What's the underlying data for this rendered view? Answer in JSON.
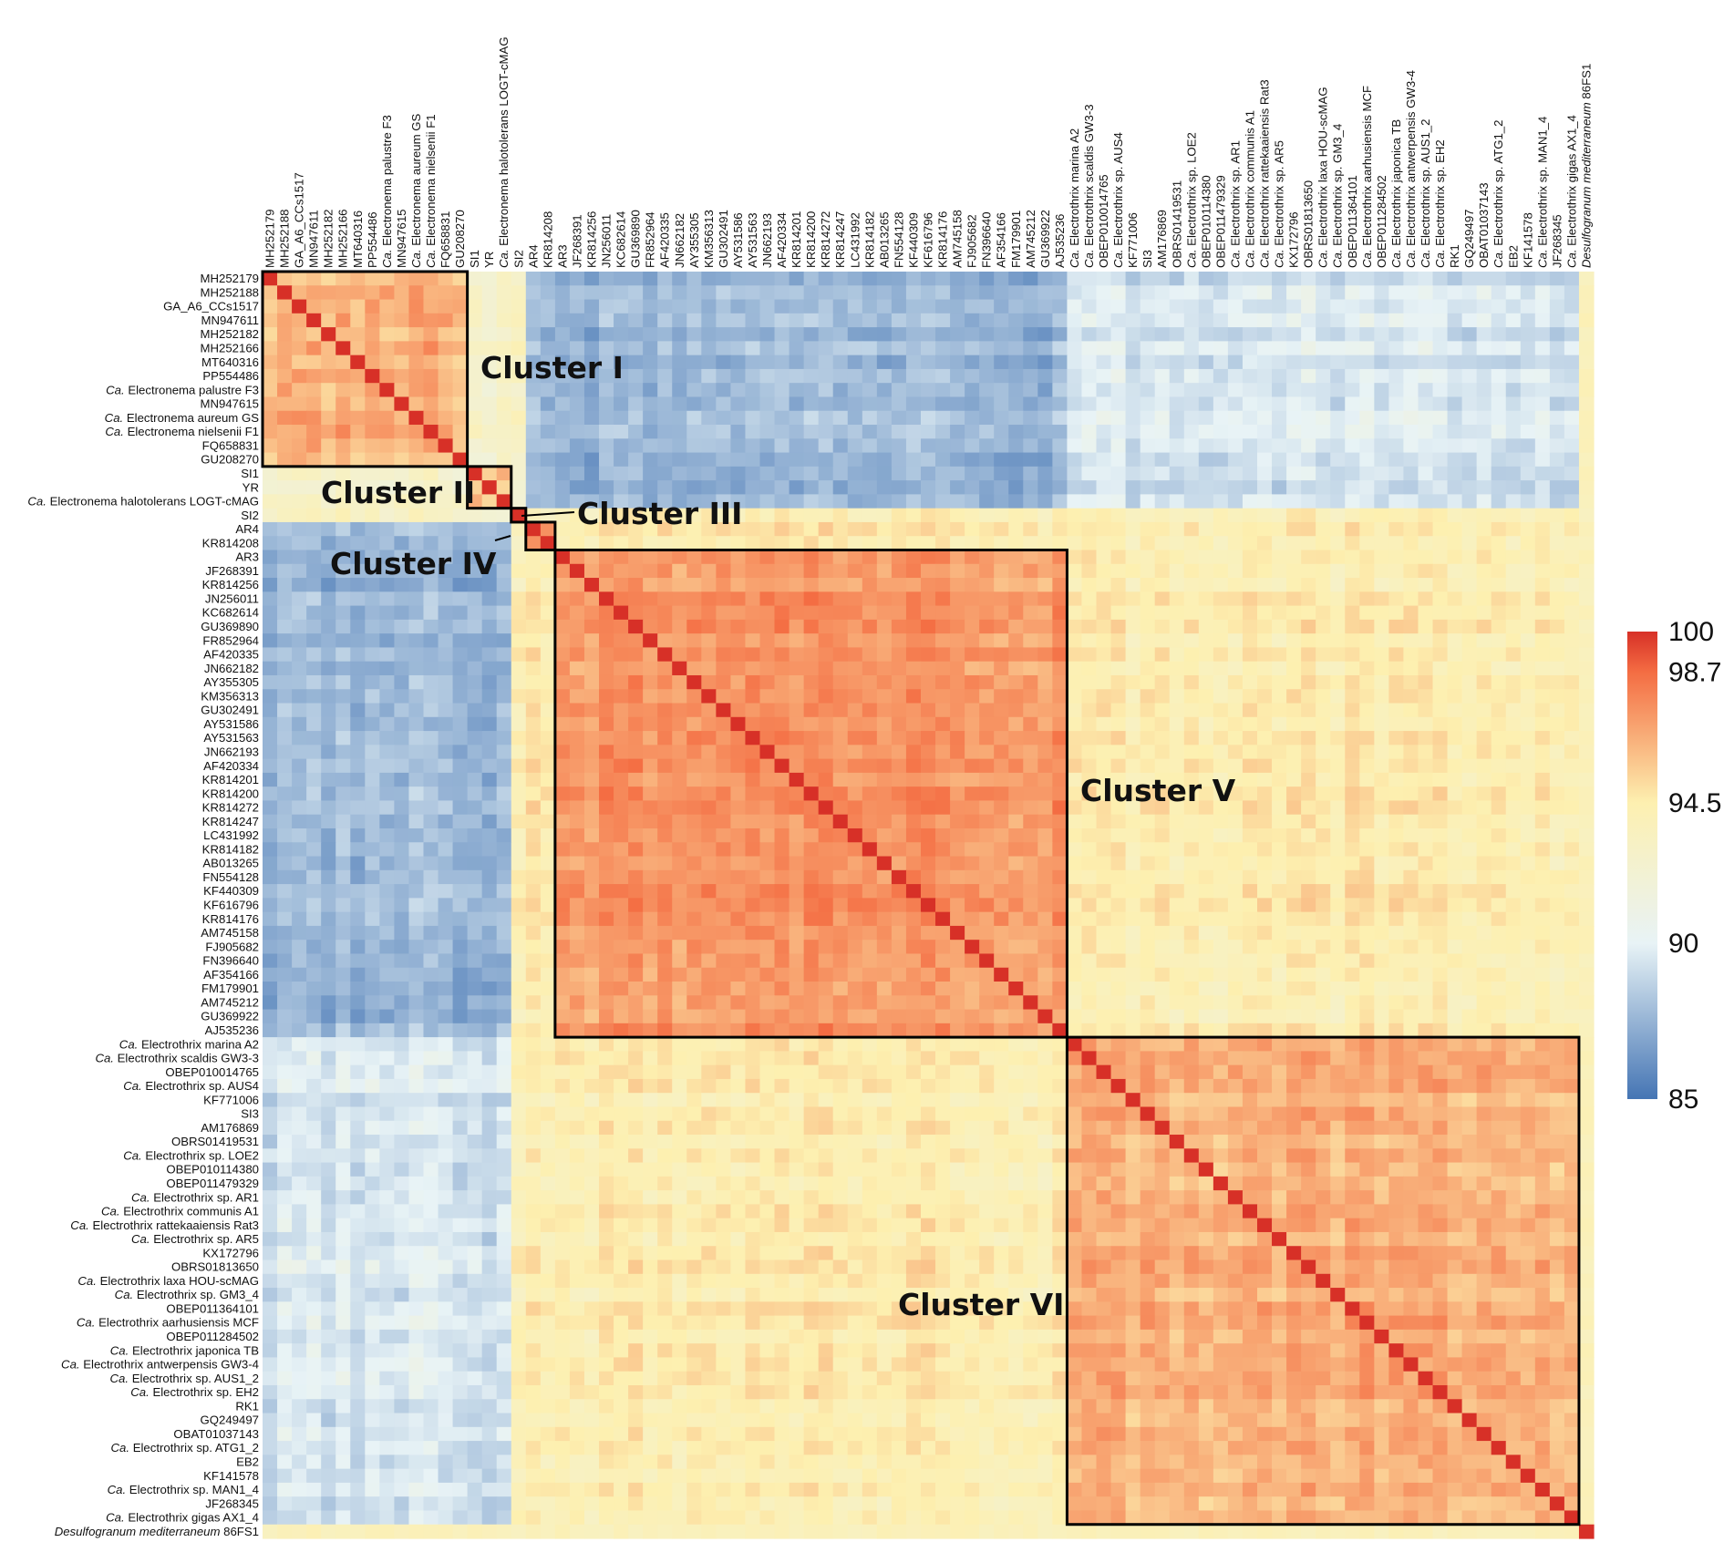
{
  "chart_data": {
    "type": "heatmap",
    "title": "",
    "xlabel": "",
    "ylabel": "",
    "labels": [
      "MH252179",
      "MH252188",
      "GA_A6_CCs1517",
      "MN947611",
      "MH252182",
      "MH252166",
      "MT640316",
      "PP554486",
      "Ca. Electronema palustre F3",
      "MN947615",
      "Ca. Electronema aureum GS",
      "Ca. Electronema nielsenii F1",
      "FQ658831",
      "GU208270",
      "SI1",
      "YR",
      "Ca. Electronema halotolerans LOGT-cMAG",
      "SI2",
      "AR4",
      "KR814208",
      "AR3",
      "JF268391",
      "KR814256",
      "JN256011",
      "KC682614",
      "GU369890",
      "FR852964",
      "AF420335",
      "JN662182",
      "AY355305",
      "KM356313",
      "GU302491",
      "AY531586",
      "AY531563",
      "JN662193",
      "AF420334",
      "KR814201",
      "KR814200",
      "KR814272",
      "KR814247",
      "LC431992",
      "KR814182",
      "AB013265",
      "FN554128",
      "KF440309",
      "KF616796",
      "KR814176",
      "AM745158",
      "FJ905682",
      "FN396640",
      "AF354166",
      "FM179901",
      "AM745212",
      "GU369922",
      "AJ535236",
      "Ca. Electrothrix marina A2",
      "Ca. Electrothrix scaldis GW3-3",
      "OBEP010014765",
      "Ca. Electrothrix sp. AUS4",
      "KF771006",
      "SI3",
      "AM176869",
      "OBRS01419531",
      "Ca. Electrothrix sp. LOE2",
      "OBEP010114380",
      "OBEP011479329",
      "Ca. Electrothrix sp. AR1",
      "Ca. Electrothrix communis A1",
      "Ca. Electrothrix rattekaaiensis Rat3",
      "Ca. Electrothrix sp. AR5",
      "KX172796",
      "OBRS01813650",
      "Ca. Electrothrix laxa HOU-scMAG",
      "Ca. Electrothrix sp. GM3_4",
      "OBEP011364101",
      "Ca. Electrothrix aarhusiensis MCF",
      "OBEP011284502",
      "Ca. Electrothrix japonica TB",
      "Ca. Electrothrix antwerpensis GW3-4",
      "Ca. Electrothrix sp. AUS1_2",
      "Ca. Electrothrix sp. EH2",
      "RK1",
      "GQ249497",
      "OBAT01037143",
      "Ca. Electrothrix sp. ATG1_2",
      "EB2",
      "KF141578",
      "Ca. Electrothrix sp. MAN1_4",
      "JF268345",
      "Ca. Electrothrix gigas AX1_4",
      "Desulfogranum mediterraneum 86FS1"
    ],
    "x_axis_labels": "same as labels",
    "y_axis_labels": "same as labels",
    "value_range": [
      85,
      100
    ],
    "diagonal_value": 100,
    "colorbar": {
      "ticks": [
        "100",
        "98.7",
        "94.5",
        "90",
        "85"
      ],
      "stops": [
        {
          "value": 85,
          "color": "#4575b4"
        },
        {
          "value": 90,
          "color": "#e8f3f6"
        },
        {
          "value": 94.5,
          "color": "#fdf0b0"
        },
        {
          "value": 98.7,
          "color": "#f46d43"
        },
        {
          "value": 100,
          "color": "#d73027"
        }
      ]
    },
    "clusters": [
      {
        "name": "Cluster I",
        "start_label": "MH252179",
        "end_label": "GU208270",
        "within_identity": 96.5
      },
      {
        "name": "Cluster II",
        "start_label": "SI1",
        "end_label": "Ca. Electronema halotolerans LOGT-cMAG",
        "within_identity": 96.0
      },
      {
        "name": "Cluster III",
        "start_label": "SI2",
        "end_label": "SI2",
        "within_identity": 100
      },
      {
        "name": "Cluster IV",
        "start_label": "AR4",
        "end_label": "KR814208",
        "within_identity": 97.5
      },
      {
        "name": "Cluster V",
        "start_label": "AR3",
        "end_label": "AJ535236",
        "within_identity": 97.2
      },
      {
        "name": "Cluster VI",
        "start_label": "Ca. Electrothrix marina A2",
        "end_label": "Ca. Electrothrix gigas AX1_4",
        "within_identity": 96.5
      }
    ],
    "between_cluster_identity": [
      [
        96.5,
        93.0,
        93.0,
        88.0,
        87.6,
        89.5
      ],
      [
        93.0,
        96.0,
        92.0,
        88.0,
        87.5,
        89.3
      ],
      [
        93.0,
        92.0,
        100,
        93.8,
        94.0,
        94.0
      ],
      [
        88.0,
        88.0,
        93.8,
        97.5,
        94.6,
        94.4
      ],
      [
        87.6,
        87.5,
        94.0,
        94.6,
        97.2,
        94.3
      ],
      [
        89.5,
        89.3,
        94.0,
        94.4,
        94.3,
        96.5
      ]
    ],
    "outgroup": {
      "label": "Desulfogranum mediterraneum 86FS1",
      "identity_to_others": 93.8
    },
    "grid": false,
    "legend": "right"
  }
}
